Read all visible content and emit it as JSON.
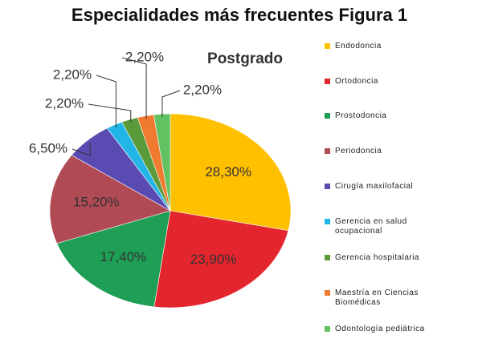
{
  "chart_data": {
    "type": "pie",
    "title": "Especialidades más frecuentes Figura 1",
    "subtitle": "Postgrado",
    "categories": [
      "Endodoncia",
      "Ortodoncia",
      "Prostodoncia",
      "Periodoncia",
      "Cirugía maxilofacial",
      "Gerencia en salud ocupacional",
      "Gerencia hospitalaria",
      "Maestría en Ciencias Biomédicas",
      "Odontología pediátrica"
    ],
    "values": [
      28.3,
      23.9,
      17.4,
      15.2,
      6.5,
      2.2,
      2.2,
      2.2,
      2.2
    ],
    "value_labels": [
      "28,30%",
      "23,90%",
      "17,40%",
      "15,20%",
      "6,50%",
      "2,20%",
      "2,20%",
      "2,20%",
      "2,20%"
    ],
    "colors": [
      "#ffc000",
      "#e3262e",
      "#1f9e55",
      "#b04a55",
      "#5a4bb3",
      "#22b5e8",
      "#5a9a3a",
      "#f07a30",
      "#62c262"
    ],
    "legend": "right"
  }
}
